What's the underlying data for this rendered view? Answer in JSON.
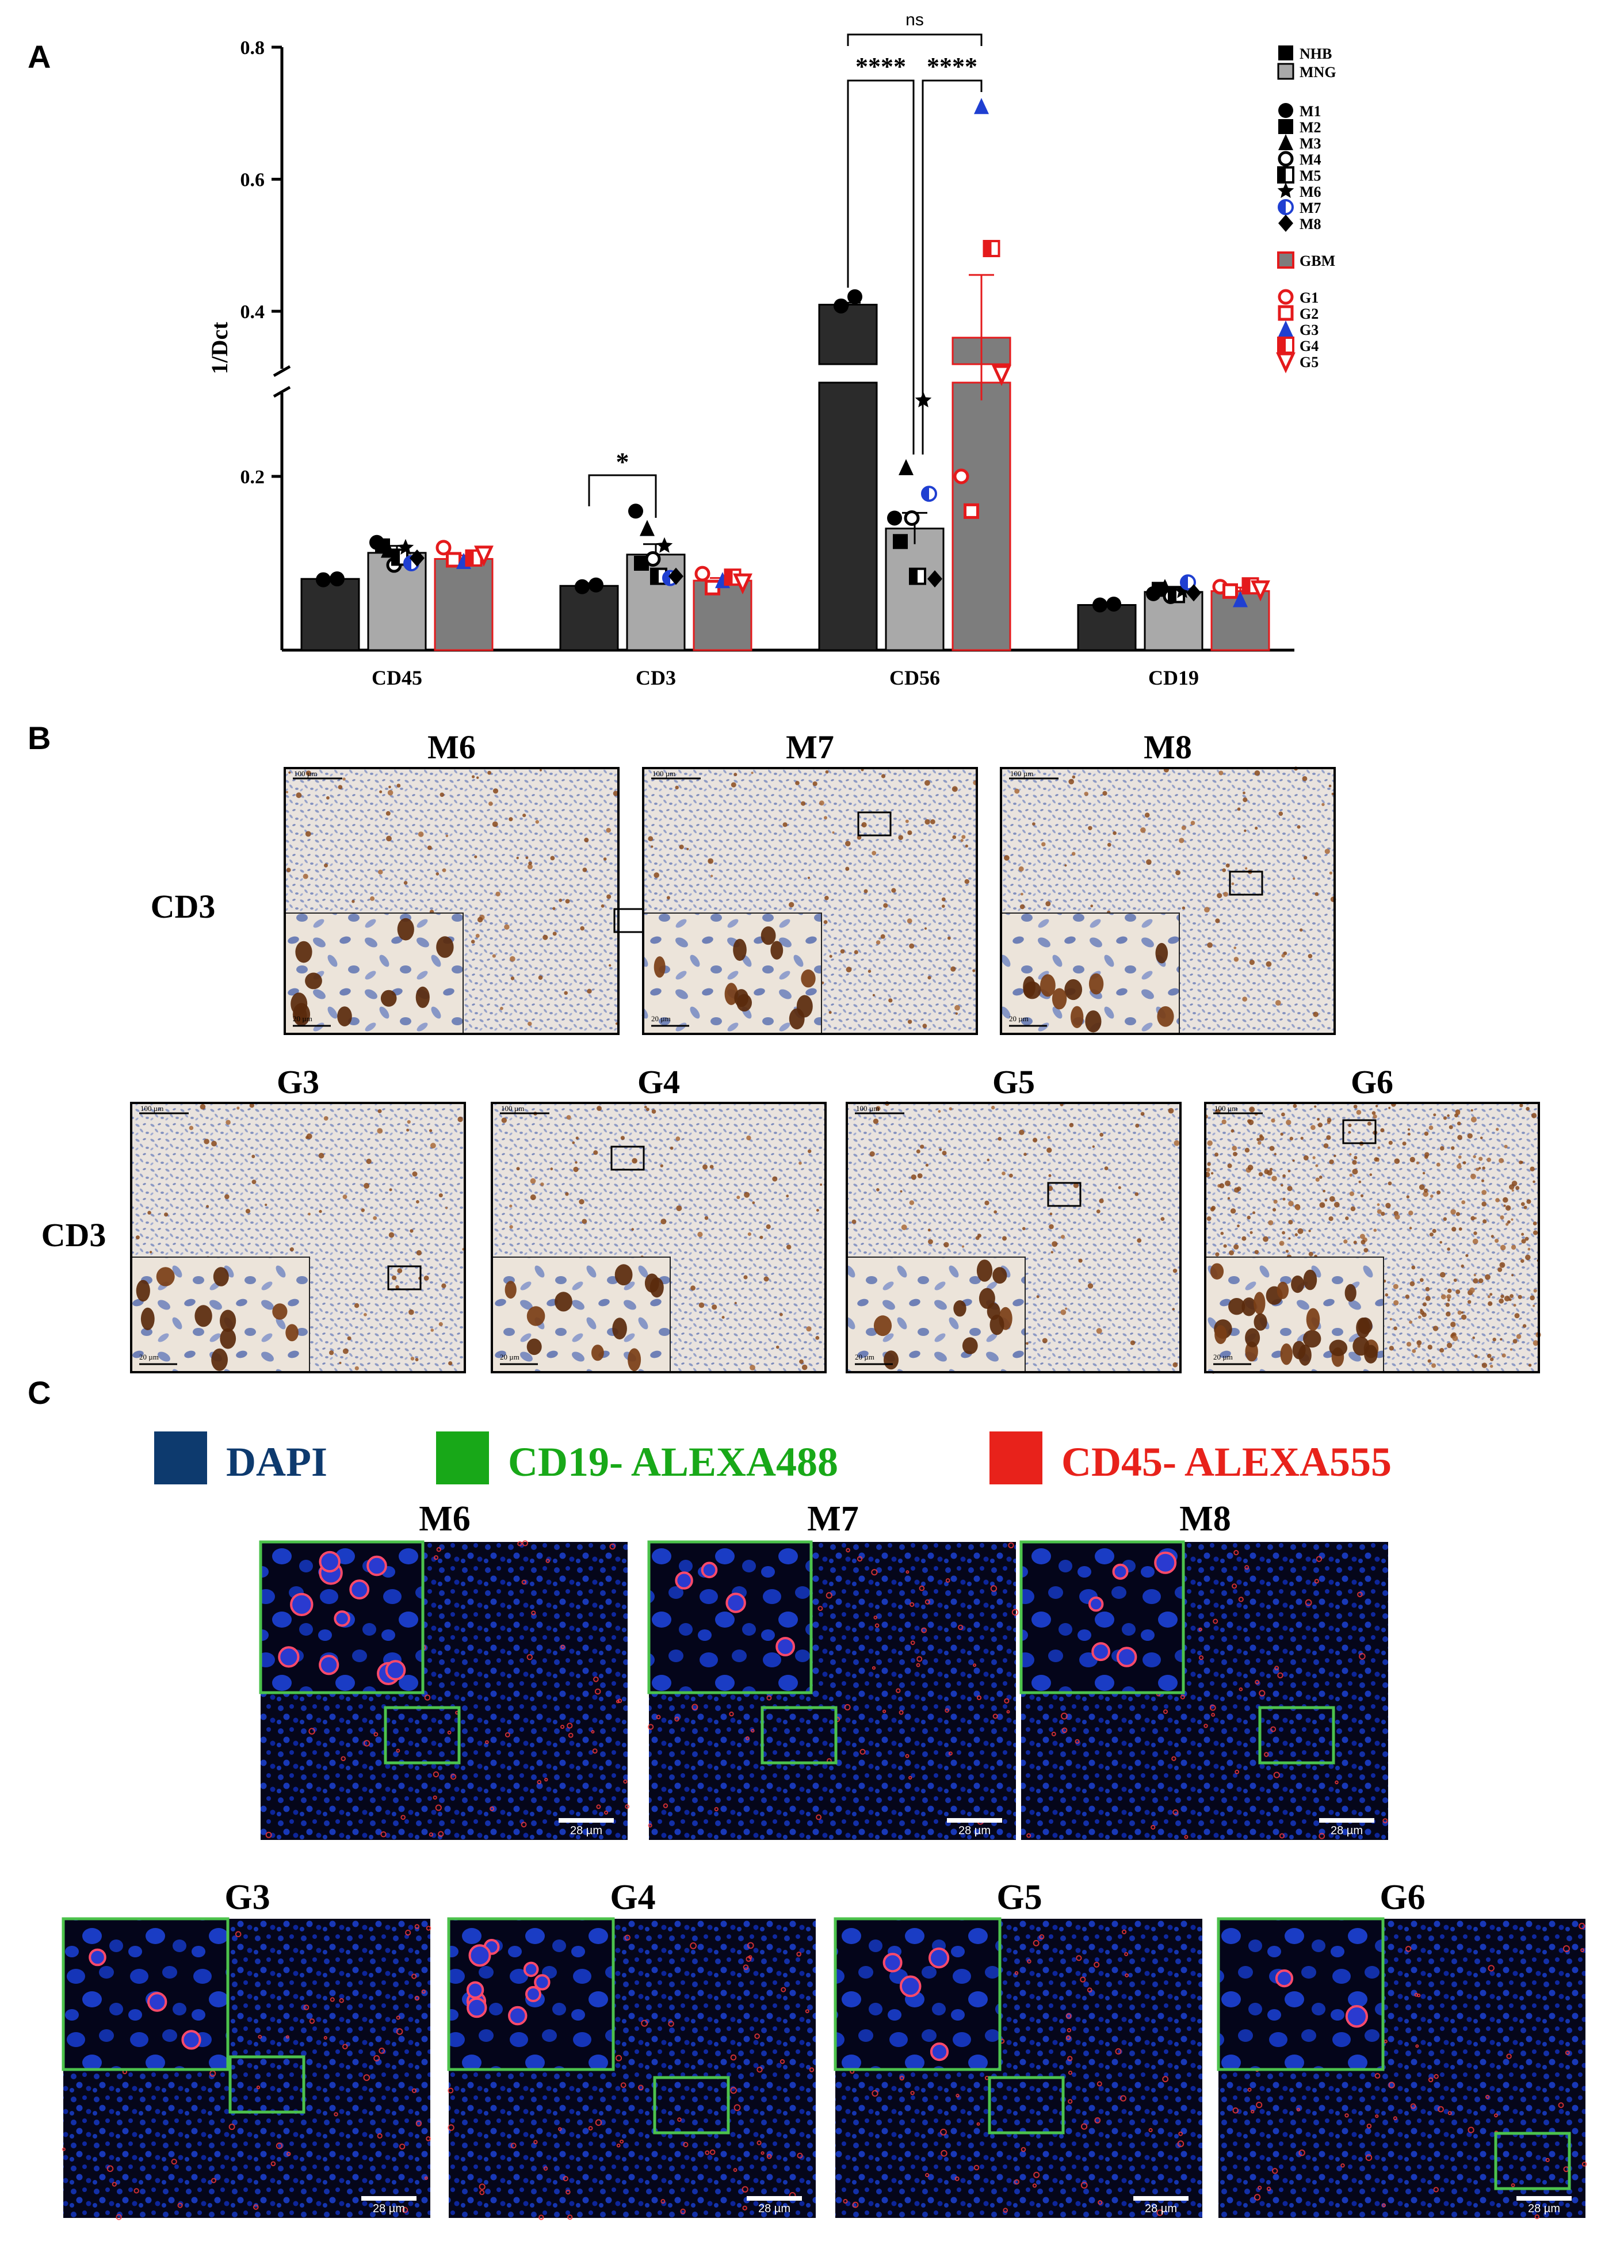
{
  "panel_labels": [
    "A",
    "B",
    "C"
  ],
  "chart_data": {
    "type": "bar",
    "ylabel": "1/Dct",
    "yticks": [
      "0.2",
      "0.4",
      "0.6",
      "0.8"
    ],
    "ylim": [
      0,
      0.8
    ],
    "axis_break": [
      0.26,
      0.33
    ],
    "categories": [
      "CD45",
      "CD3",
      "CD56",
      "CD19"
    ],
    "series": [
      {
        "name": "NHB",
        "color": "#2b2b2b",
        "outline": "#000000",
        "values": [
          0.082,
          0.074,
          0.41,
          0.052
        ]
      },
      {
        "name": "MNG",
        "color": "#a9a9a9",
        "outline": "#000000",
        "values": [
          0.112,
          0.11,
          0.14,
          0.067
        ]
      },
      {
        "name": "GBM",
        "color": "#7d7d7d",
        "outline": "#e41a1c",
        "values": [
          0.105,
          0.08,
          0.36,
          0.068
        ]
      }
    ],
    "errors": [
      [
        0.002,
        0.003,
        0.003,
        0.001
      ],
      [
        0.008,
        0.012,
        0.018,
        0.004
      ],
      [
        0.004,
        0.003,
        0.095,
        0.004
      ]
    ],
    "points": [
      [
        [
          0.081,
          0.082
        ],
        [
          0.124,
          0.12,
          0.115,
          0.098,
          0.107,
          0.118,
          0.1,
          0.106
        ],
        [
          0.118,
          0.104,
          0.102,
          0.106,
          0.11
        ]
      ],
      [
        [
          0.073,
          0.075
        ],
        [
          0.16,
          0.1,
          0.14,
          0.105,
          0.085,
          0.12,
          0.083,
          0.085
        ],
        [
          0.088,
          0.072,
          0.08,
          0.084,
          0.078
        ]
      ],
      [
        [
          0.408,
          0.422
        ],
        [
          0.152,
          0.125,
          0.21,
          0.152,
          0.085,
          0.265,
          0.18,
          0.082
        ],
        [
          0.2,
          0.16,
          0.71,
          0.495,
          0.305
        ]
      ],
      [
        [
          0.052,
          0.053
        ],
        [
          0.065,
          0.07,
          0.072,
          0.062,
          0.064,
          0.068,
          0.078,
          0.066
        ],
        [
          0.073,
          0.068,
          0.058,
          0.074,
          0.07
        ]
      ]
    ],
    "significance": [
      {
        "label": "*"
      },
      {
        "label": "****"
      },
      {
        "label": "****"
      },
      {
        "label": "ns"
      }
    ],
    "legend_groups": [
      [
        {
          "label": "NHB",
          "marker": "square",
          "color": "#000000"
        },
        {
          "label": "MNG",
          "marker": "gray-square",
          "color": "#a9a9a9"
        }
      ],
      [
        {
          "label": "M1",
          "marker": "circle",
          "color": "#000000"
        },
        {
          "label": "M2",
          "marker": "square",
          "color": "#000000"
        },
        {
          "label": "M3",
          "marker": "triangle",
          "color": "#000000"
        },
        {
          "label": "M4",
          "marker": "open-circle",
          "color": "#000000"
        },
        {
          "label": "M5",
          "marker": "half-square",
          "color": "#000000"
        },
        {
          "label": "M6",
          "marker": "star",
          "color": "#000000"
        },
        {
          "label": "M7",
          "marker": "half-circle",
          "color": "#1f3fd1"
        },
        {
          "label": "M8",
          "marker": "diamond",
          "color": "#000000"
        }
      ],
      [
        {
          "label": "GBM",
          "marker": "red-square",
          "color": "#e41a1c"
        }
      ],
      [
        {
          "label": "G1",
          "marker": "open-circle",
          "color": "#e41a1c"
        },
        {
          "label": "G2",
          "marker": "open-square",
          "color": "#e41a1c"
        },
        {
          "label": "G3",
          "marker": "triangle",
          "color": "#1f3fd1"
        },
        {
          "label": "G4",
          "marker": "half-square",
          "color": "#e41a1c"
        },
        {
          "label": "G5",
          "marker": "open-triangle-down",
          "color": "#e41a1c"
        }
      ]
    ],
    "mng_markers": [
      "circle",
      "square",
      "triangle",
      "open-circle",
      "half-square",
      "star",
      "half-circle",
      "diamond"
    ],
    "mng_colors": [
      "#000000",
      "#000000",
      "#000000",
      "#000000",
      "#000000",
      "#000000",
      "#1f3fd1",
      "#000000"
    ],
    "gbm_markers": [
      "open-circle",
      "open-square",
      "triangle",
      "half-square",
      "open-triangle-down"
    ],
    "gbm_colors": [
      "#e41a1c",
      "#e41a1c",
      "#1f3fd1",
      "#e41a1c",
      "#e41a1c"
    ]
  },
  "ihc": {
    "row_label": "CD3",
    "top_row": [
      "M6",
      "M7",
      "M8"
    ],
    "bottom_row": [
      "G3",
      "G4",
      "G5",
      "G6"
    ],
    "scale_main": "100 µm",
    "scale_inset": "20 µm"
  },
  "fluor": {
    "legend": [
      {
        "label": "DAPI",
        "color": "#0d3a6e"
      },
      {
        "label": "CD19- ALEXA488",
        "color": "#18a818"
      },
      {
        "label": "CD45- ALEXA555",
        "color": "#e8221b"
      }
    ],
    "top_row": [
      "M6",
      "M7",
      "M8"
    ],
    "bottom_row": [
      "G3",
      "G4",
      "G5",
      "G6"
    ],
    "scale": "28 µm"
  }
}
